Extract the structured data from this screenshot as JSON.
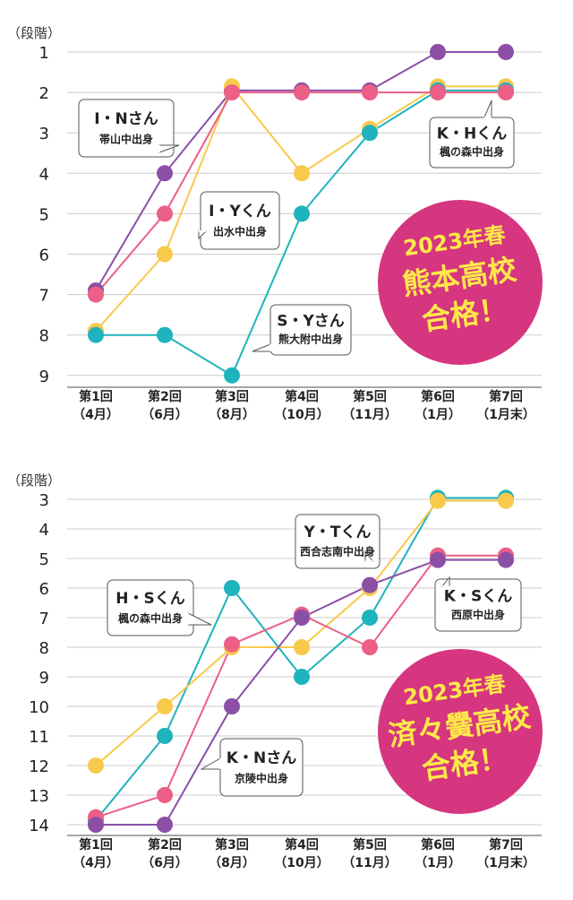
{
  "chart_data": [
    {
      "type": "line",
      "y_unit_label": "（段階）",
      "categories": [
        [
          "第1回",
          "（4月）"
        ],
        [
          "第2回",
          "（6月）"
        ],
        [
          "第3回",
          "（8月）"
        ],
        [
          "第4回",
          "（10月）"
        ],
        [
          "第5回",
          "（11月）"
        ],
        [
          "第6回",
          "（1月）"
        ],
        [
          "第7回",
          "（1月末）"
        ]
      ],
      "yticks": [
        "1",
        "2",
        "3",
        "4",
        "5",
        "6",
        "7",
        "8",
        "9"
      ],
      "ylim": [
        1,
        9
      ],
      "y_inverted": true,
      "grid": true,
      "series": [
        {
          "name": "I・Nさん",
          "school": "帯山中出身",
          "color": "#8b4fa6",
          "values": [
            6.9,
            4,
            1.95,
            1.95,
            1.95,
            1,
            1
          ]
        },
        {
          "name": "I・Yくん",
          "school": "出水中出身",
          "color": "#f8c94a",
          "values": [
            7.9,
            6,
            1.85,
            4,
            2.9,
            1.85,
            1.85
          ]
        },
        {
          "name": "S・Yさん",
          "school": "熊大附中出身",
          "color": "#1fb3bd",
          "values": [
            8,
            8,
            9,
            5,
            3,
            1.95,
            1.95
          ]
        },
        {
          "name": "K・Hくん",
          "school": "楓の森中出身",
          "color": "#ec5f86",
          "values": [
            7,
            5,
            2,
            2,
            2,
            2,
            2
          ]
        }
      ],
      "badge": [
        "2023年春",
        "熊本高校",
        "合格！"
      ]
    },
    {
      "type": "line",
      "y_unit_label": "（段階）",
      "categories": [
        [
          "第1回",
          "（4月）"
        ],
        [
          "第2回",
          "（6月）"
        ],
        [
          "第3回",
          "（8月）"
        ],
        [
          "第4回",
          "（10月）"
        ],
        [
          "第5回",
          "（11月）"
        ],
        [
          "第6回",
          "（1月）"
        ],
        [
          "第7回",
          "（1月末）"
        ]
      ],
      "yticks": [
        "3",
        "4",
        "5",
        "6",
        "7",
        "8",
        "9",
        "10",
        "11",
        "12",
        "13",
        "14"
      ],
      "ylim": [
        3,
        14
      ],
      "y_inverted": true,
      "grid": true,
      "series": [
        {
          "name": "H・Sくん",
          "school": "楓の森中出身",
          "color": "#1fb3bd",
          "values": [
            13.85,
            11,
            6,
            9,
            7,
            2.95,
            2.95
          ]
        },
        {
          "name": "Y・Tくん",
          "school": "西合志南中出身",
          "color": "#f8c94a",
          "values": [
            12,
            10,
            8,
            8,
            6,
            3.05,
            3.05
          ]
        },
        {
          "name": "K・Sくん",
          "school": "西原中出身",
          "color": "#ec5f86",
          "values": [
            13.75,
            13,
            7.9,
            6.9,
            8,
            4.9,
            4.9
          ]
        },
        {
          "name": "K・Nさん",
          "school": "京陵中出身",
          "color": "#8b4fa6",
          "values": [
            14,
            14,
            10,
            7,
            5.9,
            5.05,
            5.05
          ]
        }
      ],
      "badge": [
        "2023年春",
        "済々黌高校",
        "合格！"
      ]
    }
  ]
}
